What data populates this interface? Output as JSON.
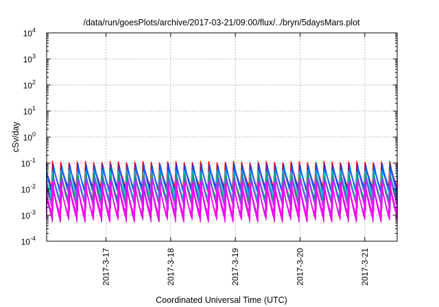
{
  "chart_data": {
    "type": "line",
    "title": "/data/run/goesPlots/archive/2017-03-21/09:00/flux/../bryn/5daysMars.plot",
    "xlabel": "Coordinated Universal Time (UTC)",
    "ylabel": "cSv/day",
    "y_scale": "log",
    "ylim": [
      0.0001,
      10000
    ],
    "y_ticks": [
      {
        "base": "10",
        "exp": "-4",
        "value": 0.0001
      },
      {
        "base": "10",
        "exp": "-3",
        "value": 0.001
      },
      {
        "base": "10",
        "exp": "-2",
        "value": 0.01
      },
      {
        "base": "10",
        "exp": "-1",
        "value": 0.1
      },
      {
        "base": "10",
        "exp": "0",
        "value": 1
      },
      {
        "base": "10",
        "exp": "1",
        "value": 10
      },
      {
        "base": "10",
        "exp": "2",
        "value": 100
      },
      {
        "base": "10",
        "exp": "3",
        "value": 1000
      },
      {
        "base": "10",
        "exp": "4",
        "value": 10000
      }
    ],
    "xlim": [
      "2017-03-16 02:00",
      "2017-03-21 12:00"
    ],
    "x_ticks": [
      {
        "label": "2017-3-17",
        "value": "2017-03-17"
      },
      {
        "label": "2017-3-18",
        "value": "2017-03-18"
      },
      {
        "label": "2017-3-19",
        "value": "2017-03-19"
      },
      {
        "label": "2017-3-20",
        "value": "2017-03-20"
      },
      {
        "label": "2017-3-21",
        "value": "2017-03-21"
      }
    ],
    "grid": true,
    "legend": "none",
    "sawtooth_period_hours": 3.05,
    "series": [
      {
        "color": "#ff0000",
        "peak": 0.11,
        "trough": 0.012
      },
      {
        "color": "#2233dd",
        "peak": 0.09,
        "trough": 0.01
      },
      {
        "color": "#1166ff",
        "peak": 0.07,
        "trough": 0.007
      },
      {
        "color": "#00bbcc",
        "peak": 0.05,
        "trough": 0.005
      },
      {
        "color": "#009966",
        "peak": 0.035,
        "trough": 0.0035
      },
      {
        "color": "#aa33ff",
        "peak": 0.025,
        "trough": 0.0022
      },
      {
        "color": "#ff00ff",
        "peak": 0.018,
        "trough": 0.0012
      },
      {
        "color": "#ee00ee",
        "peak": 0.012,
        "trough": 0.0008
      }
    ]
  }
}
